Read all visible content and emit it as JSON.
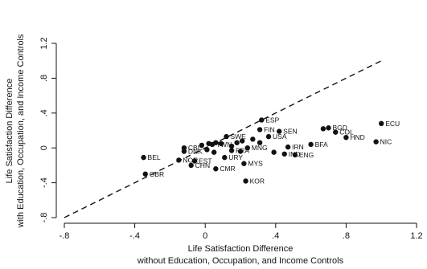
{
  "chart_data": {
    "type": "scatter",
    "title": "",
    "xlabel_lines": [
      "Life Satisfaction Difference",
      "without Education, Occupation, and Income Controls"
    ],
    "ylabel_lines": [
      "Life Satisfaction Difference",
      "with Education, Occupation, and Income Controls"
    ],
    "xlim": [
      -0.8,
      1.2
    ],
    "ylim": [
      -0.8,
      1.2
    ],
    "xticks": [
      -0.8,
      -0.4,
      0,
      0.4,
      0.8,
      1.2
    ],
    "xtick_labels": [
      "-.8",
      "-.4",
      "0",
      ".4",
      ".8",
      "1.2"
    ],
    "yticks": [
      -0.8,
      -0.4,
      0,
      0.4,
      0.8,
      1.2
    ],
    "ytick_labels": [
      "-.8",
      "-.4",
      "0",
      ".4",
      ".8",
      "1.2"
    ],
    "grid": false,
    "reference_line": {
      "style": "dashed",
      "from": [
        -0.8,
        -0.8
      ],
      "to": [
        1.0,
        1.0
      ]
    },
    "points": [
      {
        "label": "ECU",
        "x": 1.0,
        "y": 0.28
      },
      {
        "label": "NIC",
        "x": 0.97,
        "y": 0.07
      },
      {
        "label": "HND",
        "x": 0.8,
        "y": 0.12
      },
      {
        "label": "BGD",
        "x": 0.7,
        "y": 0.23
      },
      {
        "label": "COL",
        "x": 0.74,
        "y": 0.18
      },
      {
        "label": "ESP",
        "x": 0.32,
        "y": 0.32
      },
      {
        "label": "FIN",
        "x": 0.31,
        "y": 0.21
      },
      {
        "label": "SEN",
        "x": 0.42,
        "y": 0.19
      },
      {
        "label": "USA",
        "x": 0.36,
        "y": 0.13
      },
      {
        "label": "SWE",
        "x": 0.12,
        "y": 0.13
      },
      {
        "label": "BFA",
        "x": 0.6,
        "y": 0.04
      },
      {
        "label": "IRN",
        "x": 0.47,
        "y": 0.01
      },
      {
        "label": "IND",
        "x": 0.45,
        "y": -0.07
      },
      {
        "label": "ENG",
        "x": 0.51,
        "y": -0.08
      },
      {
        "label": "CBL",
        "x": -0.12,
        "y": 0.0
      },
      {
        "label": "DNK",
        "x": -0.12,
        "y": -0.04
      },
      {
        "label": "TWN",
        "x": 0.04,
        "y": 0.04
      },
      {
        "label": "MNG",
        "x": 0.24,
        "y": 0.0
      },
      {
        "label": "FRA",
        "x": 0.15,
        "y": -0.03
      },
      {
        "label": "URY",
        "x": 0.11,
        "y": -0.11
      },
      {
        "label": "MYS",
        "x": 0.22,
        "y": -0.18
      },
      {
        "label": "BEL",
        "x": -0.35,
        "y": -0.11
      },
      {
        "label": "NOR",
        "x": -0.15,
        "y": -0.14
      },
      {
        "label": "EST",
        "x": -0.06,
        "y": -0.15
      },
      {
        "label": "CHN",
        "x": -0.08,
        "y": -0.2
      },
      {
        "label": "CMR",
        "x": 0.06,
        "y": -0.24
      },
      {
        "label": "GBR",
        "x": -0.34,
        "y": -0.3
      },
      {
        "label": "KOR",
        "x": 0.23,
        "y": -0.38
      }
    ],
    "unlabeled_points": [
      {
        "x": 0.02,
        "y": 0.05
      },
      {
        "x": 0.06,
        "y": 0.06
      },
      {
        "x": 0.09,
        "y": 0.05
      },
      {
        "x": 0.18,
        "y": 0.06
      },
      {
        "x": 0.21,
        "y": 0.08
      },
      {
        "x": 0.27,
        "y": 0.1
      },
      {
        "x": 0.01,
        "y": -0.02
      },
      {
        "x": 0.05,
        "y": -0.05
      },
      {
        "x": 0.2,
        "y": -0.04
      },
      {
        "x": 0.15,
        "y": 0.02
      },
      {
        "x": 0.31,
        "y": 0.06
      },
      {
        "x": 0.39,
        "y": -0.05
      },
      {
        "x": 0.67,
        "y": 0.22
      },
      {
        "x": -0.02,
        "y": 0.03
      }
    ]
  }
}
